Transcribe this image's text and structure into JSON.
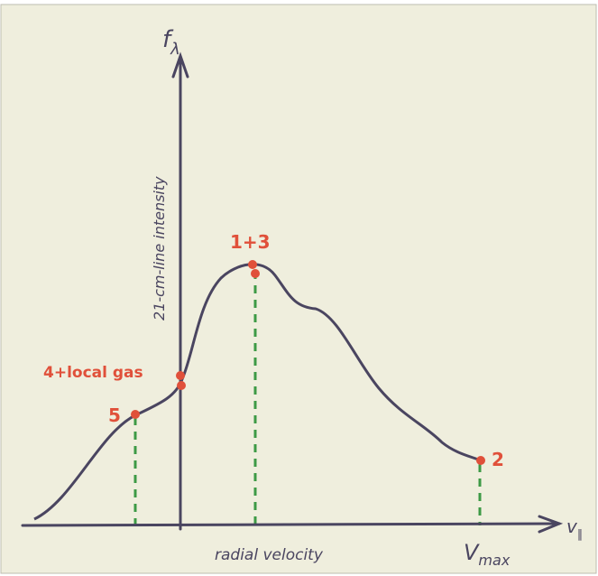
{
  "axes": {
    "y_symbol": "f",
    "y_subscript": "λ",
    "y_label": "21-cm-line intensity",
    "x_symbol": "v",
    "x_subscript": "∥",
    "x_label": "radial velocity",
    "x_max_symbol": "V",
    "x_max_subscript": "max"
  },
  "points": [
    {
      "label": "1+3"
    },
    {
      "label": "2"
    },
    {
      "label": "4+local gas"
    },
    {
      "label": "5"
    }
  ]
}
